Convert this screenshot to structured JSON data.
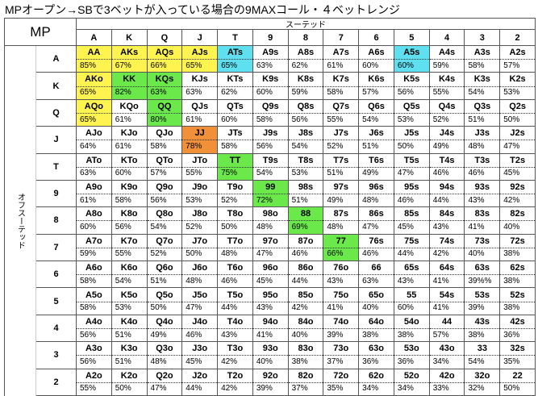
{
  "title": "MPオープン→SBで3ベットが入っている場合の9MAXコール・４ベットレンジ",
  "corner": "MP",
  "suited_label": "スーテッド",
  "offsuit_label": "オフスーテッド",
  "columns": [
    "A",
    "K",
    "Q",
    "J",
    "T",
    "9",
    "8",
    "7",
    "6",
    "5",
    "4",
    "3",
    "2"
  ],
  "rows": [
    {
      "label": "A",
      "cells": [
        {
          "hand": "AA",
          "pct": "85%",
          "color": "#fff44f"
        },
        {
          "hand": "AKs",
          "pct": "67%",
          "color": "#fff44f"
        },
        {
          "hand": "AQs",
          "pct": "66%",
          "color": "#fff44f"
        },
        {
          "hand": "AJs",
          "pct": "65%",
          "color": "#fff44f"
        },
        {
          "hand": "ATs",
          "pct": "65%",
          "color": "#5ee0f0"
        },
        {
          "hand": "A9s",
          "pct": "63%"
        },
        {
          "hand": "A8s",
          "pct": "62%"
        },
        {
          "hand": "A7s",
          "pct": "61%"
        },
        {
          "hand": "A6s",
          "pct": "60%"
        },
        {
          "hand": "A5s",
          "pct": "60%",
          "color": "#5ee0f0"
        },
        {
          "hand": "A4s",
          "pct": "59%"
        },
        {
          "hand": "A3s",
          "pct": "58%"
        },
        {
          "hand": "A2s",
          "pct": "57%"
        }
      ]
    },
    {
      "label": "K",
      "cells": [
        {
          "hand": "AKo",
          "pct": "65%",
          "color": "#fff44f"
        },
        {
          "hand": "KK",
          "pct": "82%",
          "color": "#6be84a"
        },
        {
          "hand": "KQs",
          "pct": "63%",
          "color": "#6be84a"
        },
        {
          "hand": "KJs",
          "pct": "63%"
        },
        {
          "hand": "KTs",
          "pct": "62%"
        },
        {
          "hand": "K9s",
          "pct": "60%"
        },
        {
          "hand": "K8s",
          "pct": "59%"
        },
        {
          "hand": "K7s",
          "pct": "58%"
        },
        {
          "hand": "K6s",
          "pct": "57%"
        },
        {
          "hand": "K5s",
          "pct": "56%"
        },
        {
          "hand": "K4s",
          "pct": "55%"
        },
        {
          "hand": "K3s",
          "pct": "54%"
        },
        {
          "hand": "K2s",
          "pct": "53%"
        }
      ]
    },
    {
      "label": "Q",
      "cells": [
        {
          "hand": "AQo",
          "pct": "65%",
          "color": "#fff44f"
        },
        {
          "hand": "KQo",
          "pct": "61%"
        },
        {
          "hand": "QQ",
          "pct": "80%",
          "color": "#6be84a"
        },
        {
          "hand": "QJs",
          "pct": "61%"
        },
        {
          "hand": "QTs",
          "pct": "60%"
        },
        {
          "hand": "Q9s",
          "pct": "58%"
        },
        {
          "hand": "Q8s",
          "pct": "56%"
        },
        {
          "hand": "Q7s",
          "pct": "55%"
        },
        {
          "hand": "Q6s",
          "pct": "54%"
        },
        {
          "hand": "Q5s",
          "pct": "53%"
        },
        {
          "hand": "Q4s",
          "pct": "52%"
        },
        {
          "hand": "Q3s",
          "pct": "51%"
        },
        {
          "hand": "Q2s",
          "pct": "50%"
        }
      ]
    },
    {
      "label": "J",
      "cells": [
        {
          "hand": "AJo",
          "pct": "64%"
        },
        {
          "hand": "KJo",
          "pct": "61%"
        },
        {
          "hand": "QJo",
          "pct": "58%"
        },
        {
          "hand": "JJ",
          "pct": "78%",
          "color": "#f0913a"
        },
        {
          "hand": "JTs",
          "pct": "58%"
        },
        {
          "hand": "J9s",
          "pct": "56%"
        },
        {
          "hand": "J8s",
          "pct": "54%"
        },
        {
          "hand": "J7s",
          "pct": "52%"
        },
        {
          "hand": "J6s",
          "pct": "51%"
        },
        {
          "hand": "J5s",
          "pct": "50%"
        },
        {
          "hand": "J4s",
          "pct": "49%"
        },
        {
          "hand": "J3s",
          "pct": "48%"
        },
        {
          "hand": "J2s",
          "pct": "47%"
        }
      ]
    },
    {
      "label": "T",
      "cells": [
        {
          "hand": "ATo",
          "pct": "63%"
        },
        {
          "hand": "KTo",
          "pct": "60%"
        },
        {
          "hand": "QTo",
          "pct": "57%"
        },
        {
          "hand": "JTo",
          "pct": "55%"
        },
        {
          "hand": "TT",
          "pct": "75%",
          "color": "#6be84a"
        },
        {
          "hand": "T9s",
          "pct": "54%"
        },
        {
          "hand": "T8s",
          "pct": "53%"
        },
        {
          "hand": "T7s",
          "pct": "51%"
        },
        {
          "hand": "T6s",
          "pct": "49%"
        },
        {
          "hand": "T5s",
          "pct": "47%"
        },
        {
          "hand": "T4s",
          "pct": "46%"
        },
        {
          "hand": "T3s",
          "pct": "46%"
        },
        {
          "hand": "T2s",
          "pct": "45%"
        }
      ]
    },
    {
      "label": "9",
      "cells": [
        {
          "hand": "A9o",
          "pct": "61%"
        },
        {
          "hand": "K9o",
          "pct": "58%"
        },
        {
          "hand": "Q9o",
          "pct": "56%"
        },
        {
          "hand": "J9o",
          "pct": "53%"
        },
        {
          "hand": "T9o",
          "pct": "52%"
        },
        {
          "hand": "99",
          "pct": "72%",
          "color": "#6be84a"
        },
        {
          "hand": "98s",
          "pct": "51%"
        },
        {
          "hand": "97s",
          "pct": "49%"
        },
        {
          "hand": "96s",
          "pct": "48%"
        },
        {
          "hand": "95s",
          "pct": "46%"
        },
        {
          "hand": "94s",
          "pct": "44%"
        },
        {
          "hand": "93s",
          "pct": "43%"
        },
        {
          "hand": "92s",
          "pct": "42%"
        }
      ]
    },
    {
      "label": "8",
      "cells": [
        {
          "hand": "A8o",
          "pct": "60%"
        },
        {
          "hand": "K8o",
          "pct": "56%"
        },
        {
          "hand": "Q8o",
          "pct": "54%"
        },
        {
          "hand": "J8o",
          "pct": "52%"
        },
        {
          "hand": "T8o",
          "pct": "50%"
        },
        {
          "hand": "98o",
          "pct": "48%"
        },
        {
          "hand": "88",
          "pct": "69%",
          "color": "#6be84a"
        },
        {
          "hand": "87s",
          "pct": "48%"
        },
        {
          "hand": "86s",
          "pct": "47%"
        },
        {
          "hand": "85s",
          "pct": "45%"
        },
        {
          "hand": "84s",
          "pct": "43%"
        },
        {
          "hand": "83s",
          "pct": "41%"
        },
        {
          "hand": "82s",
          "pct": "40%"
        }
      ]
    },
    {
      "label": "7",
      "cells": [
        {
          "hand": "A7o",
          "pct": "59%"
        },
        {
          "hand": "K7o",
          "pct": "55%"
        },
        {
          "hand": "Q7o",
          "pct": "52%"
        },
        {
          "hand": "J7o",
          "pct": "50%"
        },
        {
          "hand": "T7o",
          "pct": "48%"
        },
        {
          "hand": "97o",
          "pct": "47%"
        },
        {
          "hand": "87o",
          "pct": "46%"
        },
        {
          "hand": "77",
          "pct": "66%",
          "color": "#6be84a"
        },
        {
          "hand": "76s",
          "pct": "46%"
        },
        {
          "hand": "75s",
          "pct": "44%"
        },
        {
          "hand": "74s",
          "pct": "42%"
        },
        {
          "hand": "73s",
          "pct": "40%"
        },
        {
          "hand": "72s",
          "pct": "38%"
        }
      ]
    },
    {
      "label": "6",
      "cells": [
        {
          "hand": "A6o",
          "pct": "58%"
        },
        {
          "hand": "K6o",
          "pct": "54%"
        },
        {
          "hand": "Q6o",
          "pct": "51%"
        },
        {
          "hand": "J6o",
          "pct": "48%"
        },
        {
          "hand": "T6o",
          "pct": "46%"
        },
        {
          "hand": "96o",
          "pct": "45%"
        },
        {
          "hand": "86o",
          "pct": "44%"
        },
        {
          "hand": "76o",
          "pct": "43%"
        },
        {
          "hand": "66",
          "pct": "63%"
        },
        {
          "hand": "65s",
          "pct": "43%"
        },
        {
          "hand": "64s",
          "pct": "41%"
        },
        {
          "hand": "63s",
          "pct": "39%%"
        },
        {
          "hand": "62s",
          "pct": "38%"
        }
      ]
    },
    {
      "label": "5",
      "cells": [
        {
          "hand": "A5o",
          "pct": "58%"
        },
        {
          "hand": "K5o",
          "pct": "53%"
        },
        {
          "hand": "Q5o",
          "pct": "50%"
        },
        {
          "hand": "J5o",
          "pct": "47%"
        },
        {
          "hand": "T5o",
          "pct": "44%"
        },
        {
          "hand": "95o",
          "pct": "43%"
        },
        {
          "hand": "85o",
          "pct": "42%"
        },
        {
          "hand": "75o",
          "pct": "41%"
        },
        {
          "hand": "65o",
          "pct": "40%"
        },
        {
          "hand": "55",
          "pct": "60%"
        },
        {
          "hand": "54s",
          "pct": "41%"
        },
        {
          "hand": "53s",
          "pct": "39%"
        },
        {
          "hand": "52s",
          "pct": "38%"
        }
      ]
    },
    {
      "label": "4",
      "cells": [
        {
          "hand": "A4o",
          "pct": "56%"
        },
        {
          "hand": "K4o",
          "pct": "51%"
        },
        {
          "hand": "Q4o",
          "pct": "49%"
        },
        {
          "hand": "J4o",
          "pct": "46%"
        },
        {
          "hand": "T4o",
          "pct": "43%"
        },
        {
          "hand": "94o",
          "pct": "41%"
        },
        {
          "hand": "84o",
          "pct": "40%"
        },
        {
          "hand": "74o",
          "pct": "39%"
        },
        {
          "hand": "64o",
          "pct": "38%"
        },
        {
          "hand": "54o",
          "pct": "38%"
        },
        {
          "hand": "44",
          "pct": "57%"
        },
        {
          "hand": "43s",
          "pct": "38%"
        },
        {
          "hand": "42s",
          "pct": "36%"
        }
      ]
    },
    {
      "label": "3",
      "cells": [
        {
          "hand": "A3o",
          "pct": "56%"
        },
        {
          "hand": "K3o",
          "pct": "51%"
        },
        {
          "hand": "Q3o",
          "pct": "48%"
        },
        {
          "hand": "J3o",
          "pct": "45%"
        },
        {
          "hand": "T3o",
          "pct": "42%"
        },
        {
          "hand": "93o",
          "pct": "40%"
        },
        {
          "hand": "83o",
          "pct": "38%"
        },
        {
          "hand": "73o",
          "pct": "37%"
        },
        {
          "hand": "63o",
          "pct": "36%"
        },
        {
          "hand": "53o",
          "pct": "36%"
        },
        {
          "hand": "43o",
          "pct": "34%"
        },
        {
          "hand": "33",
          "pct": "54%"
        },
        {
          "hand": "32s",
          "pct": "35%"
        }
      ]
    },
    {
      "label": "2",
      "cells": [
        {
          "hand": "A2o",
          "pct": "55%"
        },
        {
          "hand": "K2o",
          "pct": "50%"
        },
        {
          "hand": "Q2o",
          "pct": "47%"
        },
        {
          "hand": "J2o",
          "pct": "44%"
        },
        {
          "hand": "T2o",
          "pct": "42%"
        },
        {
          "hand": "92o",
          "pct": "39%"
        },
        {
          "hand": "82o",
          "pct": "37%"
        },
        {
          "hand": "72o",
          "pct": "35%"
        },
        {
          "hand": "62o",
          "pct": "34%"
        },
        {
          "hand": "52o",
          "pct": "34%"
        },
        {
          "hand": "42o",
          "pct": "33%"
        },
        {
          "hand": "32o",
          "pct": "32%"
        },
        {
          "hand": "22",
          "pct": "50%"
        }
      ]
    }
  ]
}
